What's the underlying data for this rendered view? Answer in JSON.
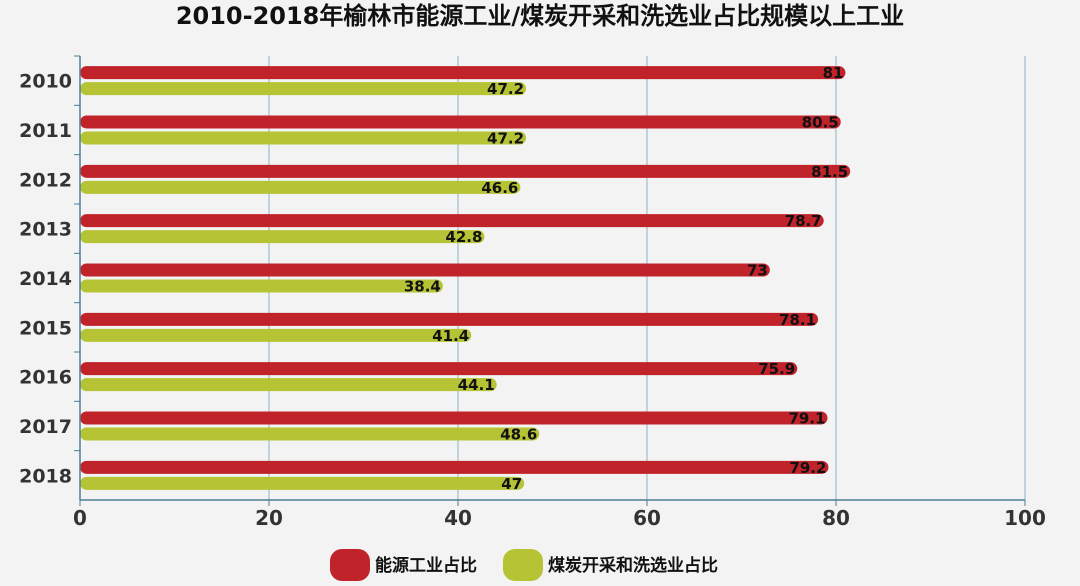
{
  "chart_data": {
    "type": "bar",
    "orientation": "horizontal",
    "title": "2010-2018年榆林市能源工业/煤炭开采和洗选业占比规模以上工业",
    "categories": [
      "2010",
      "2011",
      "2012",
      "2013",
      "2014",
      "2015",
      "2016",
      "2017",
      "2018"
    ],
    "series": [
      {
        "name": "能源工业占比",
        "color": "#c1232b",
        "values": [
          81,
          80.5,
          81.5,
          78.7,
          73,
          78.1,
          75.9,
          79.1,
          79.2
        ]
      },
      {
        "name": "煤炭开采和洗选业占比",
        "color": "#b5c334",
        "values": [
          47.2,
          47.2,
          46.6,
          42.8,
          38.4,
          41.4,
          44.1,
          48.6,
          47
        ]
      }
    ],
    "x_ticks": [
      "0",
      "20",
      "40",
      "60",
      "80",
      "100"
    ],
    "xlim": [
      0,
      100
    ],
    "grid": true,
    "legend_position": "bottom"
  }
}
